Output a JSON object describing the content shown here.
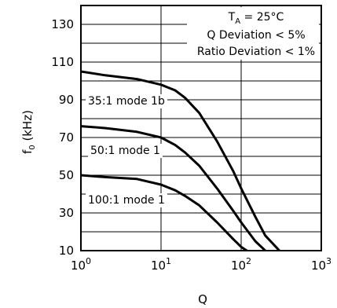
{
  "chart_data": {
    "type": "line",
    "title": "",
    "xlabel": "Q",
    "ylabel_main": "f",
    "ylabel_sub": "0",
    "ylabel_unit": " (kHz)",
    "x_scale": "log",
    "xlim": [
      1,
      1000
    ],
    "ylim": [
      10,
      140
    ],
    "grid": true,
    "x_ticks": [
      {
        "value": 1,
        "base": "10",
        "exp": "0"
      },
      {
        "value": 10,
        "base": "10",
        "exp": "1"
      },
      {
        "value": 100,
        "base": "10",
        "exp": "2"
      },
      {
        "value": 1000,
        "base": "10",
        "exp": "3"
      }
    ],
    "y_ticks": [
      10,
      30,
      50,
      70,
      90,
      110,
      130
    ],
    "annotations": {
      "ta_main": "T",
      "ta_sub": "A",
      "ta_rest": " = 25°C",
      "q_dev": "Q Deviation < 5%",
      "ratio_dev": "Ratio Deviation < 1%"
    },
    "series": [
      {
        "name": "35:1 mode 1b",
        "x": [
          1,
          2,
          5,
          10,
          15,
          20,
          30,
          50,
          80,
          100,
          150,
          200,
          300,
          380
        ],
        "y": [
          105,
          103,
          101,
          98,
          95,
          91,
          83,
          68,
          52,
          43,
          28,
          18,
          10,
          6
        ]
      },
      {
        "name": "50:1 mode 1",
        "x": [
          1,
          2,
          5,
          10,
          15,
          20,
          30,
          50,
          80,
          100,
          150,
          200,
          300,
          350
        ],
        "y": [
          76,
          75,
          73,
          70,
          66,
          62,
          55,
          43,
          31,
          25,
          15,
          10,
          5,
          3
        ]
      },
      {
        "name": "100:1 mode 1",
        "x": [
          1,
          2,
          5,
          10,
          15,
          20,
          30,
          50,
          80,
          100,
          150,
          200
        ],
        "y": [
          50,
          49,
          48,
          45,
          42,
          39,
          34,
          25,
          16,
          12,
          7,
          5
        ]
      }
    ]
  }
}
